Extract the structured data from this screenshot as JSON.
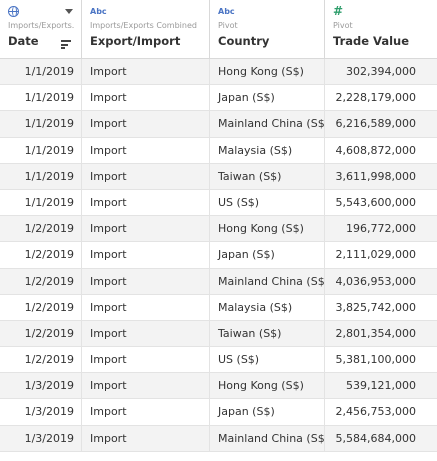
{
  "columns": [
    {
      "type_label": "",
      "subtitle": "Imports/Exports...",
      "title": "Date"
    },
    {
      "type_label": "Abc",
      "subtitle": "Imports/Exports Combined",
      "title": "Export/Import"
    },
    {
      "type_label": "Abc",
      "subtitle": "Pivot",
      "title": "Country"
    },
    {
      "type_label": "#",
      "subtitle": "Pivot",
      "title": "Trade Value"
    }
  ],
  "icons": {
    "date_type": "globe-icon",
    "date_menu": "dropdown-caret-icon",
    "date_sort": "sort-icon",
    "number_type": "hash-icon"
  },
  "rows": [
    {
      "date": "1/1/2019",
      "type": "Import",
      "country": "Hong Kong (S$)",
      "value": "302,394,000"
    },
    {
      "date": "1/1/2019",
      "type": "Import",
      "country": "Japan (S$)",
      "value": "2,228,179,000"
    },
    {
      "date": "1/1/2019",
      "type": "Import",
      "country": "Mainland China (S$)",
      "value": "6,216,589,000"
    },
    {
      "date": "1/1/2019",
      "type": "Import",
      "country": "Malaysia (S$)",
      "value": "4,608,872,000"
    },
    {
      "date": "1/1/2019",
      "type": "Import",
      "country": "Taiwan (S$)",
      "value": "3,611,998,000"
    },
    {
      "date": "1/1/2019",
      "type": "Import",
      "country": "US (S$)",
      "value": "5,543,600,000"
    },
    {
      "date": "1/2/2019",
      "type": "Import",
      "country": "Hong Kong (S$)",
      "value": "196,772,000"
    },
    {
      "date": "1/2/2019",
      "type": "Import",
      "country": "Japan (S$)",
      "value": "2,111,029,000"
    },
    {
      "date": "1/2/2019",
      "type": "Import",
      "country": "Mainland China (S$)",
      "value": "4,036,953,000"
    },
    {
      "date": "1/2/2019",
      "type": "Import",
      "country": "Malaysia (S$)",
      "value": "3,825,742,000"
    },
    {
      "date": "1/2/2019",
      "type": "Import",
      "country": "Taiwan (S$)",
      "value": "2,801,354,000"
    },
    {
      "date": "1/2/2019",
      "type": "Import",
      "country": "US (S$)",
      "value": "5,381,100,000"
    },
    {
      "date": "1/3/2019",
      "type": "Import",
      "country": "Hong Kong (S$)",
      "value": "539,121,000"
    },
    {
      "date": "1/3/2019",
      "type": "Import",
      "country": "Japan (S$)",
      "value": "2,456,753,000"
    },
    {
      "date": "1/3/2019",
      "type": "Import",
      "country": "Mainland China (S$)",
      "value": "5,584,684,000"
    }
  ]
}
